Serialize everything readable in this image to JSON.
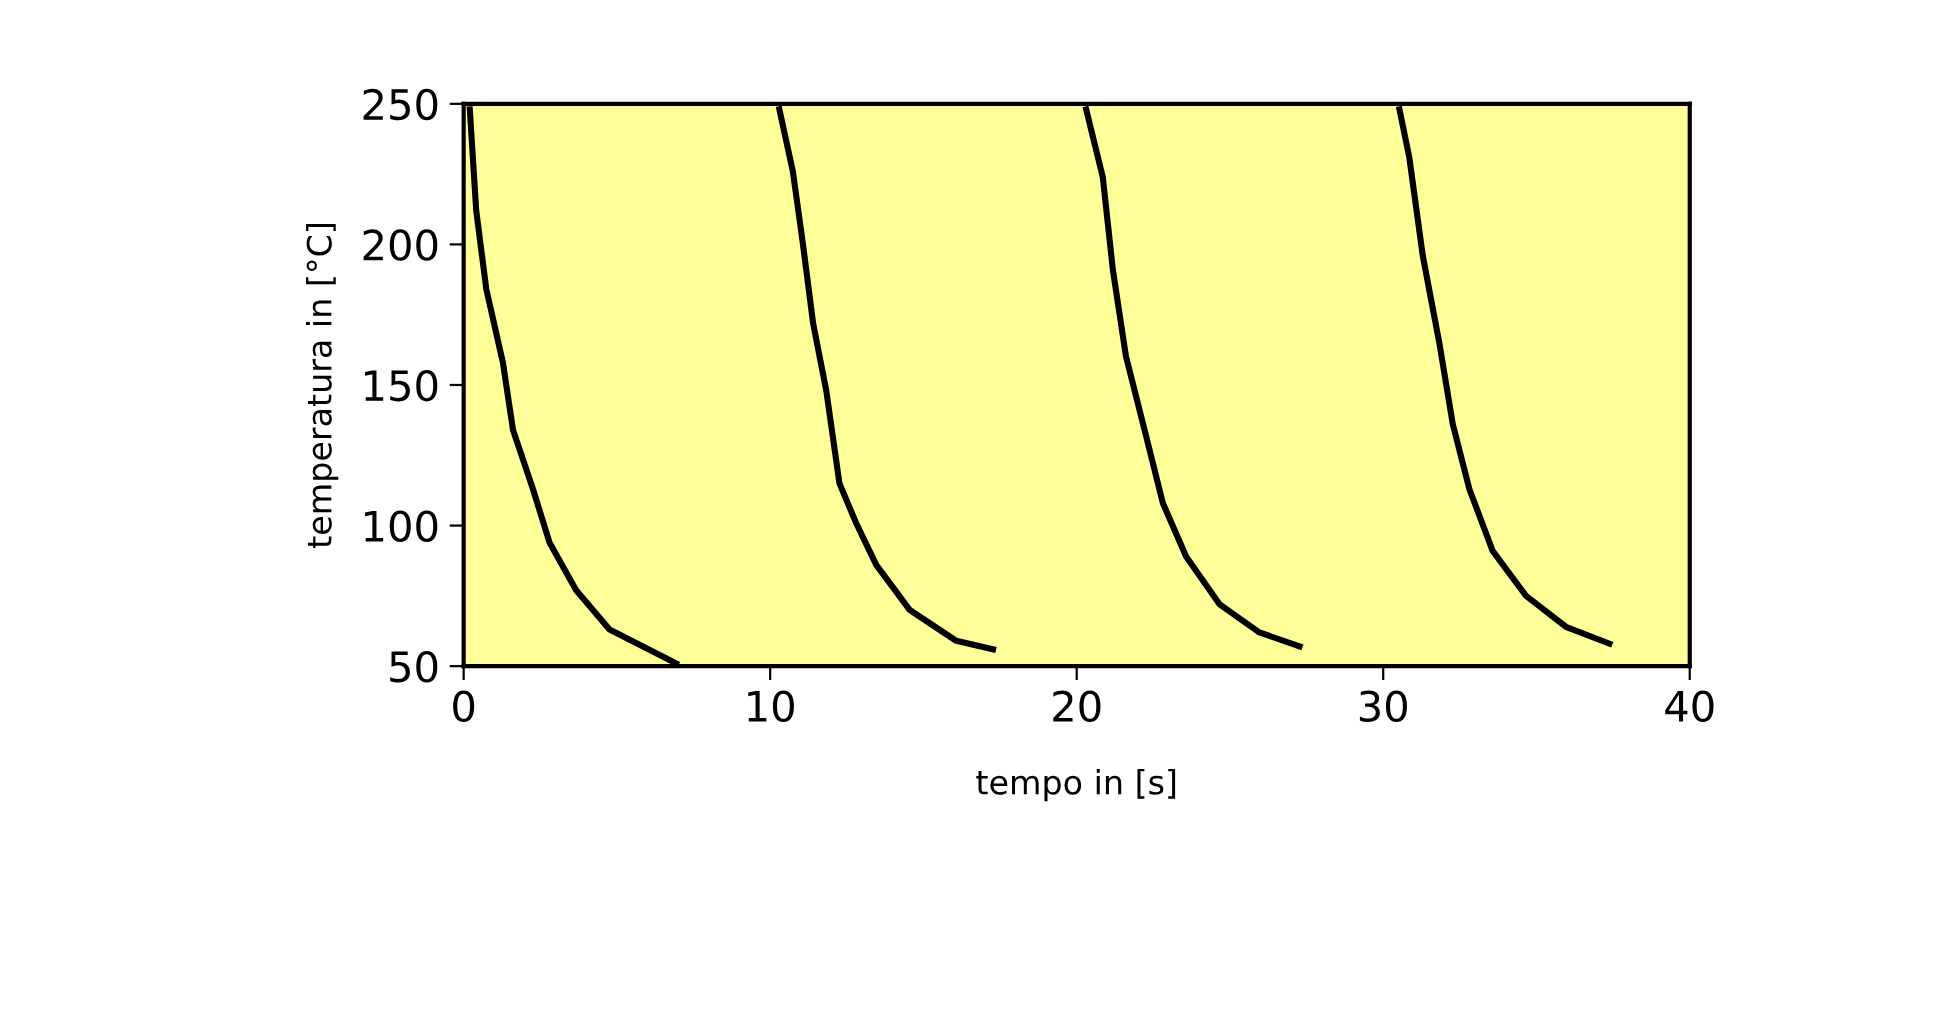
{
  "chart_data": {
    "type": "line",
    "xlabel": "tempo in [s]",
    "ylabel": "temperatura in [°C]",
    "xlim": [
      0,
      40
    ],
    "xticks": [
      0,
      10,
      20,
      30,
      40
    ],
    "ylim": [
      50,
      250
    ],
    "yticks": [
      50,
      100,
      150,
      200,
      250
    ],
    "grid": false,
    "legend": false,
    "marker": "none",
    "line_style": "solid",
    "series": [
      {
        "color": "#000000",
        "x": [
          0.2,
          0.41,
          0.74,
          1.28,
          1.61,
          2.26,
          2.8,
          3.67,
          4.76,
          5.85,
          6.93
        ],
        "values": [
          248,
          212,
          184,
          158,
          134,
          113,
          94,
          77,
          63,
          57,
          51
        ]
      },
      {
        "color": "#000000",
        "x": [
          10.3,
          10.74,
          11.07,
          11.4,
          11.83,
          12.26,
          12.8,
          13.46,
          14.55,
          16.07,
          17.27
        ],
        "values": [
          248,
          226,
          200,
          172,
          148,
          115,
          101,
          86,
          70,
          59,
          56
        ]
      },
      {
        "color": "#000000",
        "x": [
          20.31,
          20.85,
          21.18,
          21.61,
          22.26,
          22.81,
          23.57,
          24.66,
          25.96,
          27.27
        ],
        "values": [
          248,
          224,
          191,
          160,
          132,
          108,
          89,
          72,
          62,
          57
        ]
      },
      {
        "color": "#000000",
        "x": [
          30.53,
          30.85,
          31.29,
          31.83,
          32.27,
          32.81,
          33.57,
          34.66,
          35.96,
          37.38
        ],
        "values": [
          248,
          231,
          196,
          165,
          136,
          113,
          91,
          75,
          64,
          58
        ]
      }
    ]
  }
}
